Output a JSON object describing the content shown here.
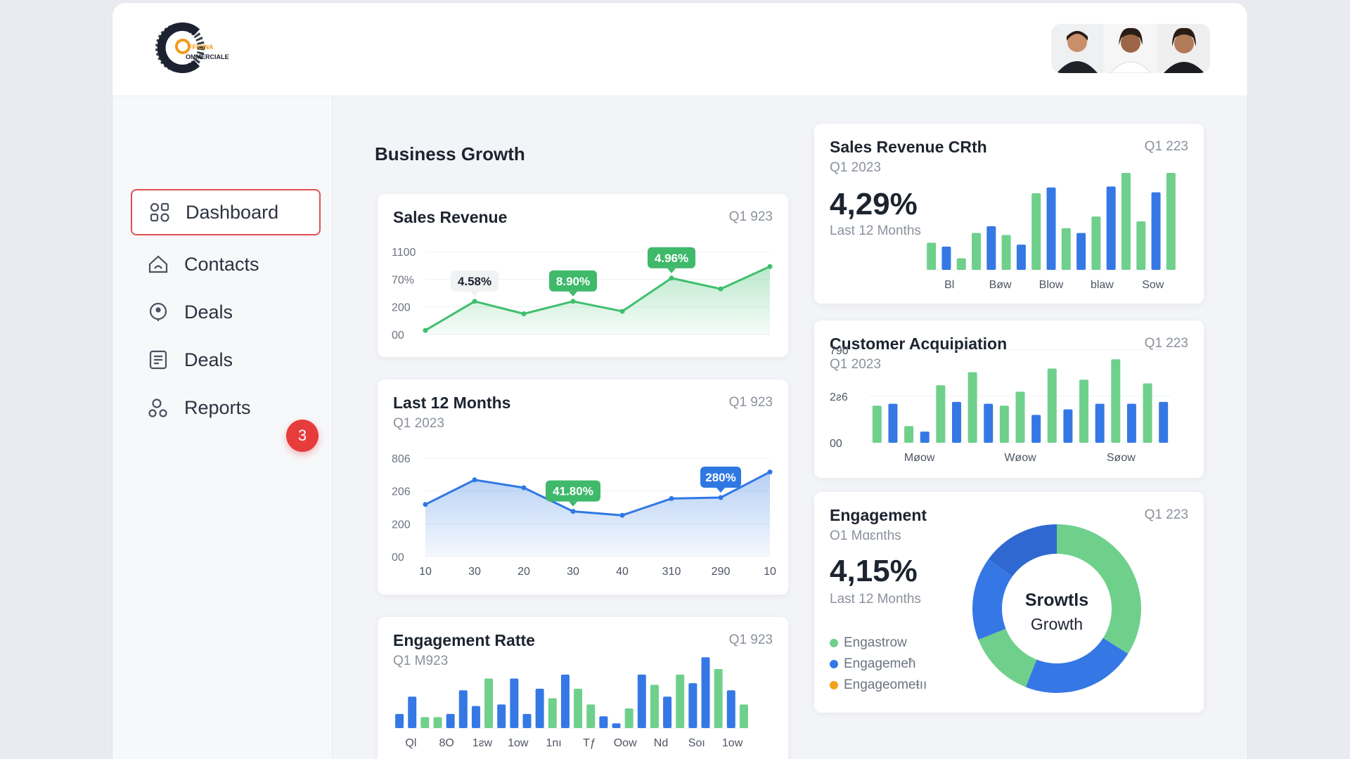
{
  "brand": {
    "logo_line1": "FFICINA",
    "logo_line2": "OMMERCIALE"
  },
  "nav": {
    "items": [
      {
        "label": "Dashboard",
        "icon": "dashboard-icon",
        "active": true
      },
      {
        "label": "Contacts",
        "icon": "home-cloud-icon"
      },
      {
        "label": "Deals",
        "icon": "location-pin-icon"
      },
      {
        "label": "Deals",
        "icon": "document-icon"
      },
      {
        "label": "Reports",
        "icon": "users-icon"
      }
    ],
    "badge": "3"
  },
  "section_title": "Business Growth",
  "colors": {
    "green": "#6fd08c",
    "blue": "#3578e5",
    "orange": "#f2a21b",
    "accent_red": "#e15050"
  },
  "chart_data": [
    {
      "id": "sales-revenue",
      "type": "area",
      "title": "Sales Revenue",
      "period": "Q1 923",
      "y_ticks": [
        "1100",
        "70%",
        "200",
        "00"
      ],
      "values": [
        5,
        40,
        25,
        40,
        28,
        68,
        55,
        82
      ],
      "ylim": [
        0,
        100
      ],
      "callouts": [
        {
          "label": "4.58%",
          "point": 1,
          "style": "white"
        },
        {
          "label": "8.90%",
          "point": 3,
          "style": "green"
        },
        {
          "label": "4.96%",
          "point": 5,
          "style": "green"
        }
      ]
    },
    {
      "id": "last-12-months",
      "type": "area",
      "title": "Last 12 Months",
      "subtitle": "Q1 2023",
      "period": "Q1 923",
      "y_ticks": [
        "806",
        "206",
        "200",
        "00"
      ],
      "x_ticks": [
        "10",
        "30",
        "20",
        "30",
        "40",
        "310",
        "290",
        "10"
      ],
      "values": [
        53,
        78,
        70,
        46,
        42,
        59,
        60,
        86
      ],
      "ylim": [
        0,
        100
      ],
      "callouts": [
        {
          "label": "41.80%",
          "point": 3,
          "style": "green"
        },
        {
          "label": "280%",
          "point": 6,
          "style": "blue"
        }
      ]
    },
    {
      "id": "engagement-rate",
      "type": "bar",
      "title": "Engagement Ratte",
      "subtitle": "Q1 M923",
      "period": "Q1 923",
      "x_ticks": [
        "Ql",
        "8O",
        "1ƨw",
        "1ow",
        "1nı",
        "Tƒ",
        "Oow",
        "Nd",
        "Soı",
        "1ow"
      ],
      "values": [
        18,
        40,
        14,
        14,
        18,
        48,
        28,
        63,
        30,
        63,
        18,
        50,
        38,
        68,
        50,
        30,
        15,
        6,
        25,
        68,
        55,
        40,
        68,
        57,
        90,
        75,
        48,
        30
      ],
      "colors": [
        "b",
        "b",
        "g",
        "g",
        "b",
        "b",
        "b",
        "g",
        "b",
        "b",
        "b",
        "b",
        "g",
        "b",
        "g",
        "g",
        "b",
        "b",
        "g",
        "b",
        "g",
        "b",
        "g",
        "b",
        "b",
        "g",
        "b",
        "g"
      ]
    },
    {
      "id": "sales-revenue-crth",
      "type": "bar",
      "title": "Sales Revenue CRth",
      "subtitle": "Q1 2023",
      "period": "Q1 223",
      "headline": "4,29%",
      "headline_sub": "Last 12 Months",
      "x_ticks": [
        "Bl",
        "Bøw",
        "Blow",
        "blaw",
        "Sow"
      ],
      "values": [
        28,
        24,
        12,
        38,
        45,
        36,
        26,
        79,
        85,
        43,
        38,
        55,
        86,
        100,
        50,
        80,
        100
      ],
      "colors": [
        "g",
        "b",
        "g",
        "g",
        "b",
        "g",
        "b",
        "g",
        "b",
        "g",
        "b",
        "g",
        "b",
        "g",
        "g",
        "b",
        "g"
      ]
    },
    {
      "id": "customer-acquisition",
      "type": "bar",
      "title": "Customer Acquipiation",
      "subtitle": "Q1 2023",
      "period": "Q1 223",
      "y_ticks": [
        "790",
        "2ƨ6",
        "00"
      ],
      "x_ticks": [
        "Møow",
        "Wøow",
        "Søow"
      ],
      "values": [
        40,
        42,
        18,
        12,
        62,
        44,
        76,
        42,
        40,
        55,
        30,
        80,
        36,
        68,
        42,
        90,
        42,
        64,
        44
      ],
      "colors": [
        "g",
        "b",
        "g",
        "b",
        "g",
        "b",
        "g",
        "b",
        "g",
        "g",
        "b",
        "g",
        "b",
        "g",
        "b",
        "g",
        "b",
        "g",
        "b"
      ]
    },
    {
      "id": "engagement",
      "type": "pie",
      "title": "Engagement",
      "subtitle": "O1 Mɑɛnths",
      "period": "Q1 223",
      "headline": "4,15%",
      "headline_sub": "Last 12 Months",
      "center_line1": "Srowtls",
      "center_line2": "Growth",
      "slices": [
        {
          "name": "Engastrow",
          "value": 34,
          "color": "#6fd08c"
        },
        {
          "name": "Engagemeħ",
          "value": 22,
          "color": "#3578e5"
        },
        {
          "name": "",
          "value": 13,
          "color": "#6fd08c"
        },
        {
          "name": "",
          "value": 16,
          "color": "#3578e5"
        },
        {
          "name": "",
          "value": 15,
          "color": "#2f68d0"
        }
      ],
      "legend": [
        {
          "label": "Engastrow",
          "color": "#6fd08c"
        },
        {
          "label": "Engagemeħ",
          "color": "#3578e5"
        },
        {
          "label": "Engageomeŧıı",
          "color": "#f2a21b"
        }
      ]
    }
  ]
}
